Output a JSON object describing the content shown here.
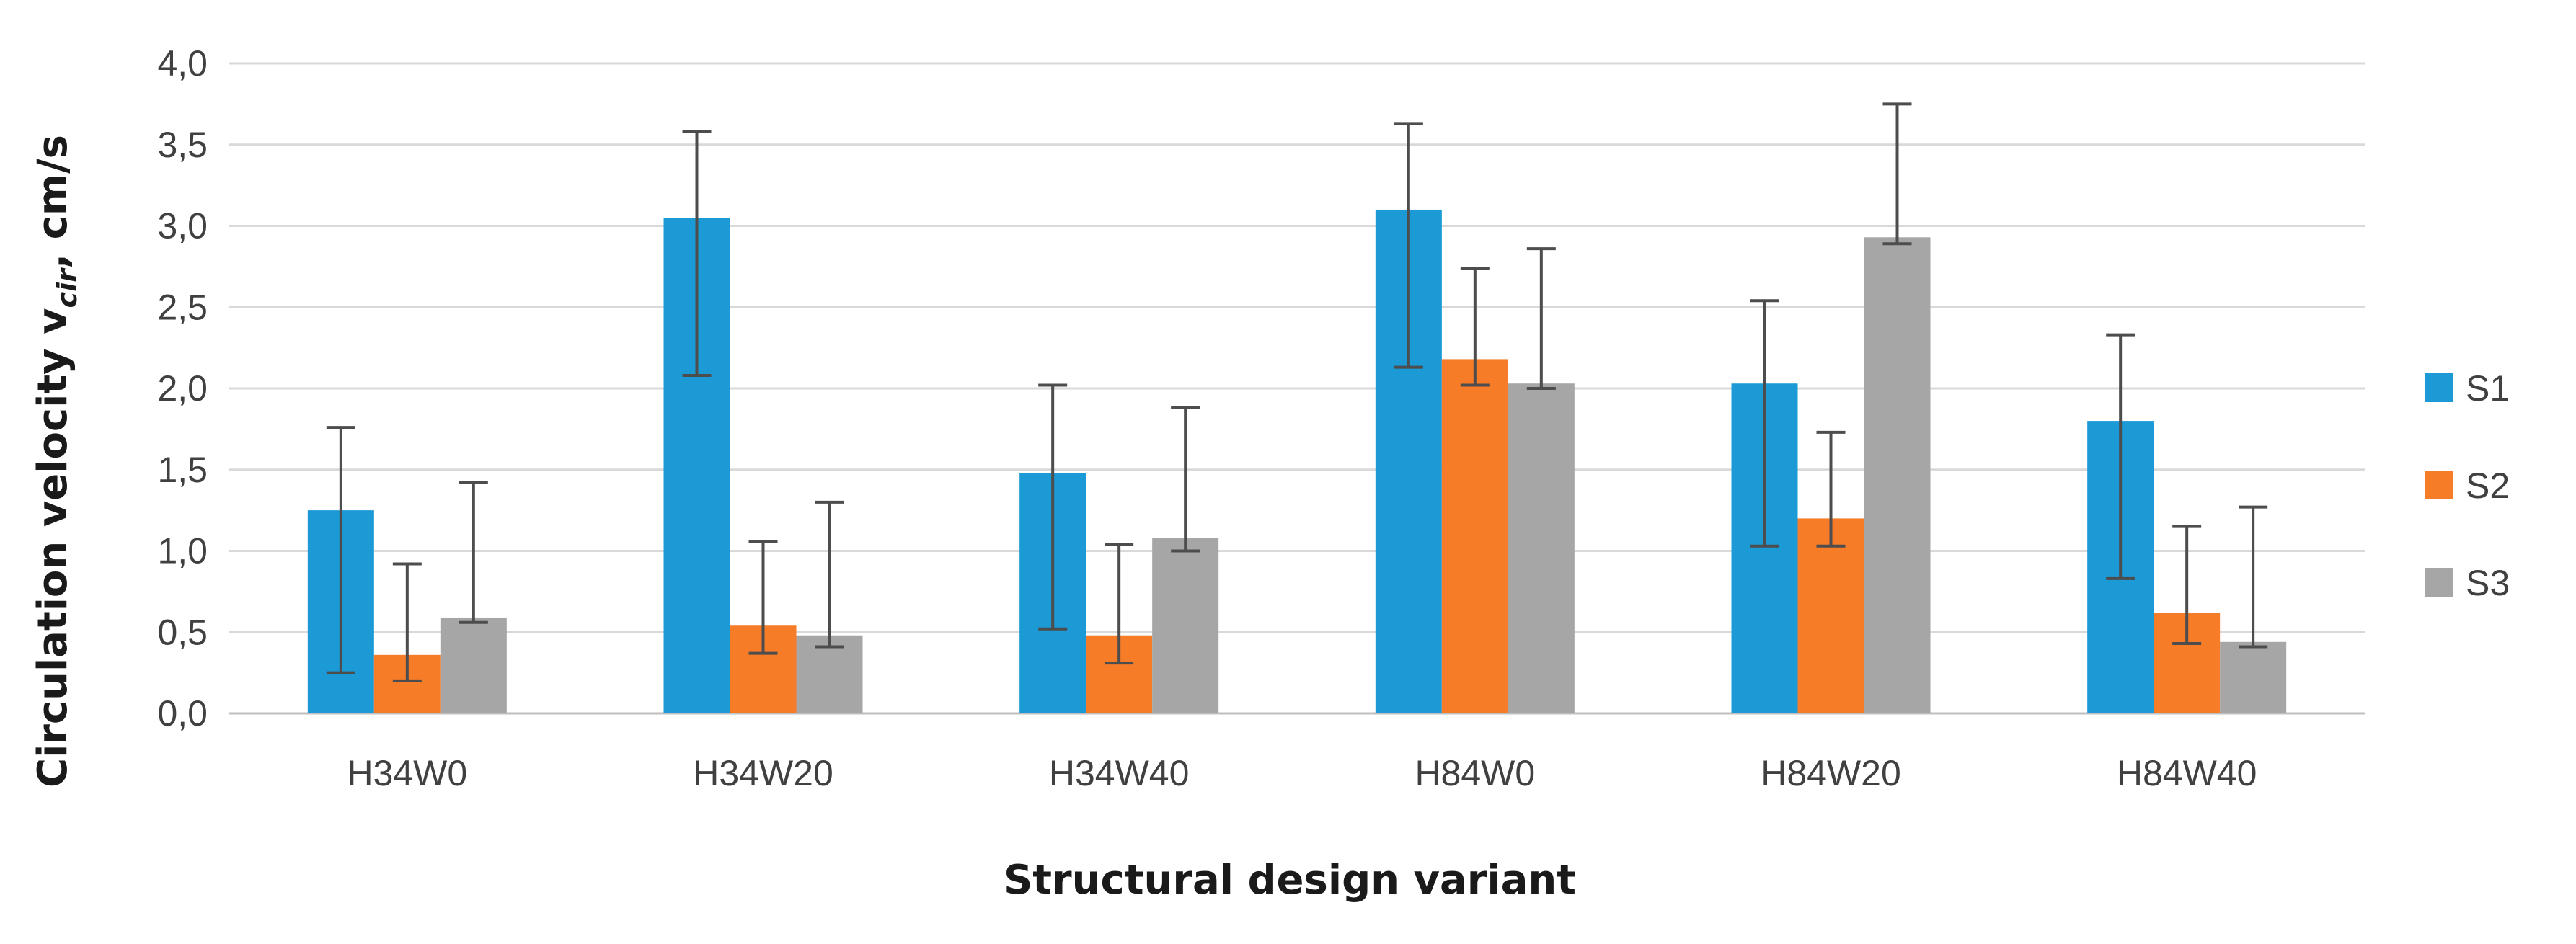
{
  "chart_data": {
    "type": "bar",
    "title": "",
    "xlabel": "Structural design variant",
    "ylabel_main": "Circulation  velocity  v",
    "ylabel_sub": "cir",
    "ylabel_tail": ", cm/s",
    "categories": [
      "H34W0",
      "H34W20",
      "H34W40",
      "H84W0",
      "H84W20",
      "H84W40"
    ],
    "ylim": [
      0,
      4
    ],
    "yticks": [
      "0,0",
      "0,5",
      "1,0",
      "1,5",
      "2,0",
      "2,5",
      "3,0",
      "3,5",
      "4,0"
    ],
    "ytick_values": [
      0,
      0.5,
      1.0,
      1.5,
      2.0,
      2.5,
      3.0,
      3.5,
      4.0
    ],
    "grid": true,
    "legend_position": "right",
    "series": [
      {
        "name": "S1",
        "color": "#1B9AD6",
        "values": [
          1.25,
          3.05,
          1.48,
          3.1,
          2.03,
          1.8
        ],
        "err_low": [
          0.25,
          2.08,
          0.52,
          2.13,
          1.03,
          0.83
        ],
        "err_high": [
          1.76,
          3.58,
          2.02,
          3.63,
          2.54,
          2.33
        ]
      },
      {
        "name": "S2",
        "color": "#F77C28",
        "values": [
          0.36,
          0.54,
          0.48,
          2.18,
          1.2,
          0.62
        ],
        "err_low": [
          0.2,
          0.37,
          0.31,
          2.02,
          1.03,
          0.43
        ],
        "err_high": [
          0.92,
          1.06,
          1.04,
          2.74,
          1.73,
          1.15
        ]
      },
      {
        "name": "S3",
        "color": "#A6A6A6",
        "values": [
          0.59,
          0.48,
          1.08,
          2.03,
          2.93,
          0.44
        ],
        "err_low": [
          0.56,
          0.41,
          1.0,
          2.0,
          2.89,
          0.41
        ],
        "err_high": [
          1.42,
          1.3,
          1.88,
          2.86,
          3.75,
          1.27
        ]
      }
    ]
  }
}
